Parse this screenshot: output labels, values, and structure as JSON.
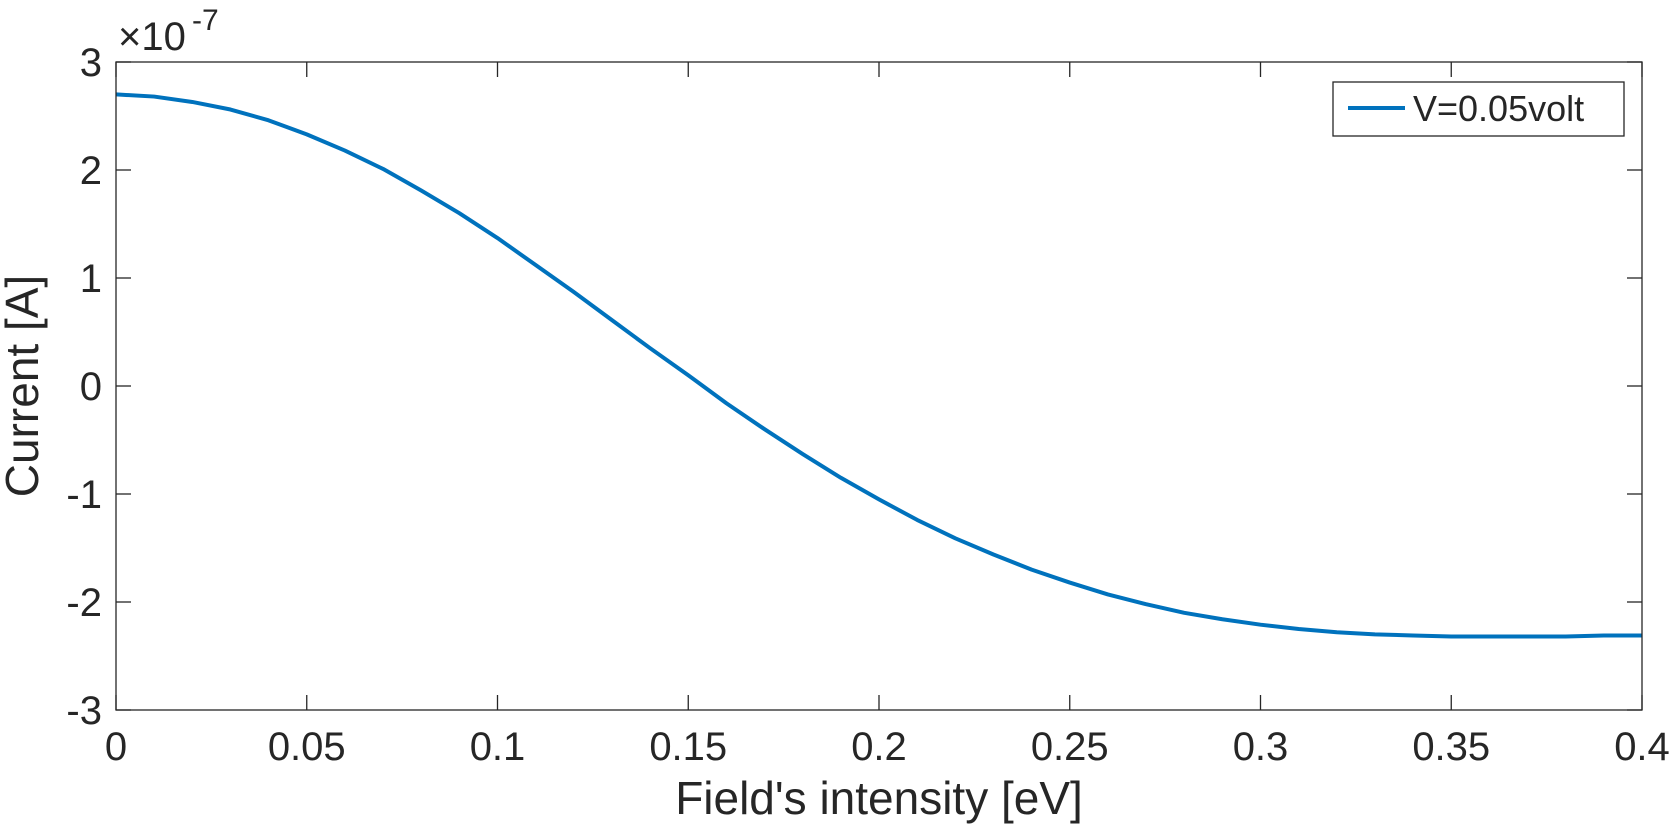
{
  "chart_data": {
    "type": "line",
    "xlabel": "Field's intensity [eV]",
    "ylabel": "Current [A]",
    "exponent": "-7",
    "xlim": [
      0,
      0.4
    ],
    "ylim": [
      -3,
      3
    ],
    "x_ticks": [
      0,
      0.05,
      0.1,
      0.15,
      0.2,
      0.25,
      0.3,
      0.35,
      0.4
    ],
    "x_tick_labels": [
      "0",
      "0.05",
      "0.1",
      "0.15",
      "0.2",
      "0.25",
      "0.3",
      "0.35",
      "0.4"
    ],
    "y_ticks": [
      -3,
      -2,
      -1,
      0,
      1,
      2,
      3
    ],
    "y_tick_labels": [
      "-3",
      "-2",
      "-1",
      "0",
      "1",
      "2",
      "3"
    ],
    "legend_position": "top-right",
    "grid": false,
    "series": [
      {
        "name": "V=0.05volt",
        "color": "#0072BD",
        "x": [
          0,
          0.01,
          0.02,
          0.03,
          0.04,
          0.05,
          0.06,
          0.07,
          0.08,
          0.09,
          0.1,
          0.11,
          0.12,
          0.13,
          0.14,
          0.15,
          0.16,
          0.17,
          0.18,
          0.19,
          0.2,
          0.21,
          0.22,
          0.23,
          0.24,
          0.25,
          0.26,
          0.27,
          0.28,
          0.29,
          0.3,
          0.31,
          0.32,
          0.33,
          0.34,
          0.35,
          0.36,
          0.37,
          0.38,
          0.39,
          0.4
        ],
        "y": [
          2.7,
          2.68,
          2.63,
          2.56,
          2.46,
          2.33,
          2.18,
          2.01,
          1.81,
          1.6,
          1.37,
          1.12,
          0.87,
          0.61,
          0.35,
          0.1,
          -0.16,
          -0.4,
          -0.63,
          -0.85,
          -1.05,
          -1.24,
          -1.41,
          -1.56,
          -1.7,
          -1.82,
          -1.93,
          -2.02,
          -2.1,
          -2.16,
          -2.21,
          -2.25,
          -2.28,
          -2.3,
          -2.31,
          -2.32,
          -2.32,
          -2.32,
          -2.32,
          -2.31,
          -2.31
        ]
      }
    ]
  }
}
